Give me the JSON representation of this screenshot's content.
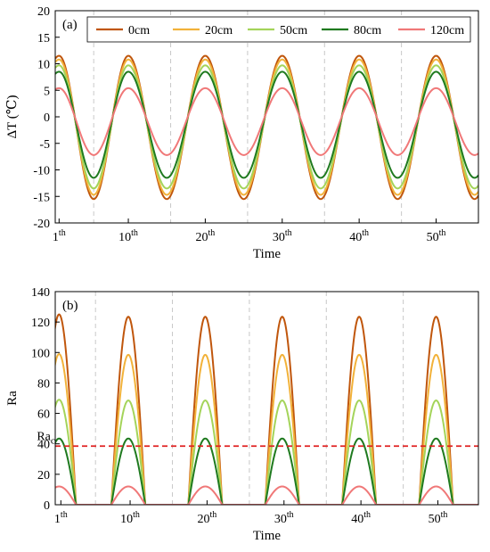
{
  "chart_data": [
    {
      "type": "line",
      "panel_label": "(a)",
      "xlabel": "Time",
      "ylabel": "ΔT (℃)",
      "ylim": [
        -20,
        20
      ],
      "yticks": [
        -20,
        -15,
        -10,
        -5,
        0,
        5,
        10,
        15,
        20
      ],
      "xlim": [
        0.5,
        55.5
      ],
      "xticks": [
        {
          "x": 1,
          "base": "1",
          "sup": "th"
        },
        {
          "x": 10,
          "base": "10",
          "sup": "th"
        },
        {
          "x": 20,
          "base": "20",
          "sup": "th"
        },
        {
          "x": 30,
          "base": "30",
          "sup": "th"
        },
        {
          "x": 40,
          "base": "40",
          "sup": "th"
        },
        {
          "x": 50,
          "base": "50",
          "sup": "th"
        }
      ],
      "separators_x": [
        5.5,
        15.5,
        25.5,
        35.5,
        45.5
      ],
      "peaks_x": [
        1,
        10,
        20,
        30,
        40,
        50
      ],
      "legend_position": "top",
      "series": [
        {
          "name": "0cm",
          "color": "#c0560c",
          "max": 11.5,
          "min": -15.5
        },
        {
          "name": "20cm",
          "color": "#f2b23a",
          "max": 10.8,
          "min": -14.7
        },
        {
          "name": "50cm",
          "color": "#a4d45a",
          "max": 9.7,
          "min": -13.5
        },
        {
          "name": "80cm",
          "color": "#1f7a1f",
          "max": 8.5,
          "min": -11.5
        },
        {
          "name": "120cm",
          "color": "#f07878",
          "max": 5.4,
          "min": -7.2
        }
      ]
    },
    {
      "type": "line",
      "panel_label": "(b)",
      "xlabel": "Time",
      "ylabel": "Ra",
      "ylim": [
        0,
        140
      ],
      "yticks": [
        0,
        20,
        40,
        60,
        80,
        100,
        120,
        140
      ],
      "xlim": [
        0.5,
        55.5
      ],
      "xticks": [
        {
          "x": 1,
          "base": "1",
          "sup": "th"
        },
        {
          "x": 10,
          "base": "10",
          "sup": "th"
        },
        {
          "x": 20,
          "base": "20",
          "sup": "th"
        },
        {
          "x": 30,
          "base": "30",
          "sup": "th"
        },
        {
          "x": 40,
          "base": "40",
          "sup": "th"
        },
        {
          "x": 50,
          "base": "50",
          "sup": "th"
        }
      ],
      "separators_x": [
        5.5,
        15.5,
        25.5,
        35.5,
        45.5
      ],
      "peaks_x": [
        1,
        10,
        20,
        30,
        40,
        50
      ],
      "pulse_halfwidth": 2.2,
      "reference_line": {
        "label_base": "Ra",
        "label_sub": "c",
        "value": 38.5,
        "color": "#e02020"
      },
      "series": [
        {
          "name": "0cm",
          "color": "#c0560c",
          "peaks": [
            125,
            123.5,
            123.5,
            123.5,
            123.5,
            123.5
          ]
        },
        {
          "name": "20cm",
          "color": "#f2b23a",
          "peaks": [
            99,
            98.5,
            98.5,
            98.5,
            98.5,
            98.5
          ]
        },
        {
          "name": "50cm",
          "color": "#a4d45a",
          "peaks": [
            69,
            68.5,
            68.5,
            68.5,
            68.5,
            68.5
          ]
        },
        {
          "name": "80cm",
          "color": "#1f7a1f",
          "peaks": [
            43.5,
            43.5,
            43.5,
            43.5,
            43.5,
            43.5
          ]
        },
        {
          "name": "120cm",
          "color": "#f07878",
          "peaks": [
            12,
            12,
            12,
            12,
            12,
            12
          ]
        }
      ]
    }
  ]
}
